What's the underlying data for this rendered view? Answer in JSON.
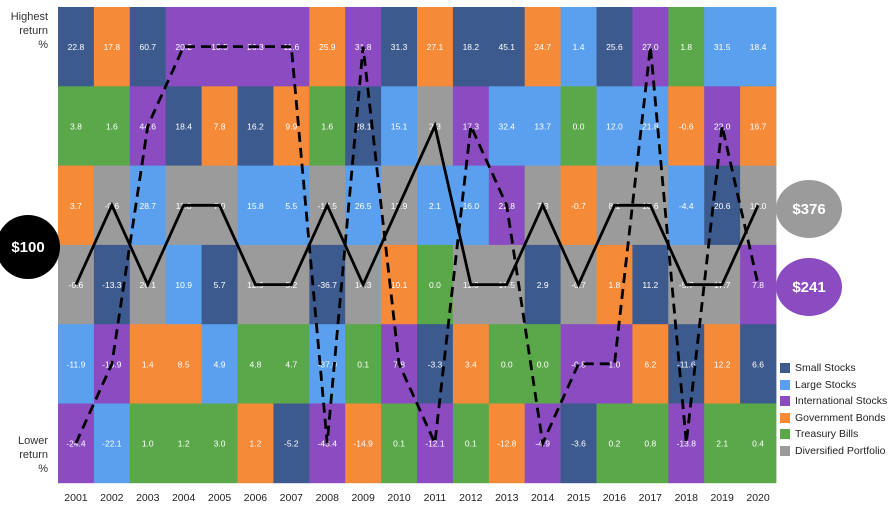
{
  "chart_data": {
    "type": "heatmap",
    "title": "",
    "years": [
      "2001",
      "2002",
      "2003",
      "2004",
      "2005",
      "2006",
      "2007",
      "2008",
      "2009",
      "2010",
      "2011",
      "2012",
      "2013",
      "2014",
      "2015",
      "2016",
      "2017",
      "2018",
      "2019",
      "2020"
    ],
    "y_top_label": [
      "Highest",
      "return",
      "%"
    ],
    "y_bottom_label": [
      "Lower",
      "return",
      "%"
    ],
    "series": [
      {
        "name": "Small Stocks",
        "key": "S",
        "color": "#3d5a8e"
      },
      {
        "name": "Large Stocks",
        "key": "L",
        "color": "#5aa0ee"
      },
      {
        "name": "International Stocks",
        "key": "I",
        "color": "#8a4cc0"
      },
      {
        "name": "Government Bonds",
        "key": "G",
        "color": "#f58a38"
      },
      {
        "name": "Treasury Bills",
        "key": "T",
        "color": "#5ba84a"
      },
      {
        "name": "Diversified Portfolio",
        "key": "D",
        "color": "#9b9b9b"
      }
    ],
    "columns": [
      {
        "year": "2001",
        "cells": [
          [
            "S",
            "22.8"
          ],
          [
            "T",
            "3.8"
          ],
          [
            "G",
            "3.7"
          ],
          [
            "D",
            "-0.6"
          ],
          [
            "L",
            "-11.9"
          ],
          [
            "I",
            "-24.4"
          ]
        ]
      },
      {
        "year": "2002",
        "cells": [
          [
            "G",
            "17.8"
          ],
          [
            "T",
            "1.6"
          ],
          [
            "D",
            "-0.6"
          ],
          [
            "S",
            "-13.3"
          ],
          [
            "I",
            "-15.9"
          ],
          [
            "L",
            "-22.1"
          ]
        ]
      },
      {
        "year": "2003",
        "cells": [
          [
            "S",
            "60.7"
          ],
          [
            "I",
            "44.6"
          ],
          [
            "L",
            "28.7"
          ],
          [
            "D",
            "26.1"
          ],
          [
            "G",
            "1.4"
          ],
          [
            "T",
            "1.0"
          ]
        ]
      },
      {
        "year": "2004",
        "cells": [
          [
            "I",
            "20.2"
          ],
          [
            "S",
            "18.4"
          ],
          [
            "D",
            "11.8"
          ],
          [
            "L",
            "10.9"
          ],
          [
            "G",
            "8.5"
          ],
          [
            "T",
            "1.2"
          ]
        ]
      },
      {
        "year": "2005",
        "cells": [
          [
            "I",
            "13.5"
          ],
          [
            "G",
            "7.8"
          ],
          [
            "D",
            "7.0"
          ],
          [
            "S",
            "5.7"
          ],
          [
            "L",
            "4.9"
          ],
          [
            "T",
            "3.0"
          ]
        ]
      },
      {
        "year": "2006",
        "cells": [
          [
            "I",
            "26.3"
          ],
          [
            "S",
            "16.2"
          ],
          [
            "L",
            "15.8"
          ],
          [
            "D",
            "12.9"
          ],
          [
            "T",
            "4.8"
          ],
          [
            "G",
            "1.2"
          ]
        ]
      },
      {
        "year": "2007",
        "cells": [
          [
            "I",
            "11.6"
          ],
          [
            "G",
            "9.9"
          ],
          [
            "L",
            "5.5"
          ],
          [
            "D",
            "5.2"
          ],
          [
            "T",
            "4.7"
          ],
          [
            "S",
            "-5.2"
          ]
        ]
      },
      {
        "year": "2008",
        "cells": [
          [
            "G",
            "25.9"
          ],
          [
            "T",
            "1.6"
          ],
          [
            "D",
            "-17.5"
          ],
          [
            "S",
            "-36.7"
          ],
          [
            "L",
            "-37.0"
          ],
          [
            "I",
            "-43.4"
          ]
        ]
      },
      {
        "year": "2009",
        "cells": [
          [
            "I",
            "31.8"
          ],
          [
            "S",
            "28.1"
          ],
          [
            "L",
            "26.5"
          ],
          [
            "D",
            "14.3"
          ],
          [
            "T",
            "0.1"
          ],
          [
            "G",
            "-14.9"
          ]
        ]
      },
      {
        "year": "2010",
        "cells": [
          [
            "S",
            "31.3"
          ],
          [
            "L",
            "15.1"
          ],
          [
            "D",
            "12.9"
          ],
          [
            "G",
            "10.1"
          ],
          [
            "I",
            "7.8"
          ],
          [
            "T",
            "0.1"
          ]
        ]
      },
      {
        "year": "2011",
        "cells": [
          [
            "G",
            "27.1"
          ],
          [
            "D",
            "2.3"
          ],
          [
            "L",
            "2.1"
          ],
          [
            "T",
            "0.0"
          ],
          [
            "S",
            "-3.3"
          ],
          [
            "I",
            "-12.1"
          ]
        ]
      },
      {
        "year": "2012",
        "cells": [
          [
            "S",
            "18.2"
          ],
          [
            "I",
            "17.3"
          ],
          [
            "L",
            "16.0"
          ],
          [
            "D",
            "11.0"
          ],
          [
            "G",
            "3.4"
          ],
          [
            "T",
            "0.1"
          ]
        ]
      },
      {
        "year": "2013",
        "cells": [
          [
            "S",
            "45.1"
          ],
          [
            "L",
            "32.4"
          ],
          [
            "I",
            "22.8"
          ],
          [
            "D",
            "17.5"
          ],
          [
            "T",
            "0.0"
          ],
          [
            "G",
            "-12.8"
          ]
        ]
      },
      {
        "year": "2014",
        "cells": [
          [
            "G",
            "24.7"
          ],
          [
            "L",
            "13.7"
          ],
          [
            "D",
            "7.3"
          ],
          [
            "S",
            "2.9"
          ],
          [
            "T",
            "0.0"
          ],
          [
            "I",
            "-4.9"
          ]
        ]
      },
      {
        "year": "2015",
        "cells": [
          [
            "L",
            "1.4"
          ],
          [
            "T",
            "0.0"
          ],
          [
            "G",
            "-0.7"
          ],
          [
            "D",
            "-0.7"
          ],
          [
            "I",
            "-0.8"
          ],
          [
            "S",
            "-3.6"
          ]
        ]
      },
      {
        "year": "2016",
        "cells": [
          [
            "S",
            "25.6"
          ],
          [
            "L",
            "12.0"
          ],
          [
            "D",
            "8.1"
          ],
          [
            "G",
            "1.8"
          ],
          [
            "I",
            "1.0"
          ],
          [
            "T",
            "0.2"
          ]
        ]
      },
      {
        "year": "2017",
        "cells": [
          [
            "I",
            "27.0"
          ],
          [
            "L",
            "21.8"
          ],
          [
            "D",
            "13.6"
          ],
          [
            "S",
            "11.2"
          ],
          [
            "G",
            "6.2"
          ],
          [
            "T",
            "0.8"
          ]
        ]
      },
      {
        "year": "2018",
        "cells": [
          [
            "T",
            "1.8"
          ],
          [
            "G",
            "-0.6"
          ],
          [
            "L",
            "-4.4"
          ],
          [
            "D",
            "-5.7"
          ],
          [
            "S",
            "-11.6"
          ],
          [
            "I",
            "-13.8"
          ]
        ]
      },
      {
        "year": "2019",
        "cells": [
          [
            "L",
            "31.5"
          ],
          [
            "I",
            "22.0"
          ],
          [
            "S",
            "20.6"
          ],
          [
            "D",
            "17.7"
          ],
          [
            "G",
            "12.2"
          ],
          [
            "T",
            "2.1"
          ]
        ]
      },
      {
        "year": "2020",
        "cells": [
          [
            "L",
            "18.4"
          ],
          [
            "G",
            "16.7"
          ],
          [
            "D",
            "10.0"
          ],
          [
            "I",
            "7.8"
          ],
          [
            "S",
            "6.6"
          ],
          [
            "T",
            "0.4"
          ]
        ]
      }
    ],
    "rank_paths": {
      "Diversified Portfolio": [
        4,
        3,
        4,
        3,
        3,
        4,
        4,
        3,
        4,
        3,
        2,
        4,
        4,
        3,
        4,
        3,
        3,
        4,
        4,
        3
      ],
      "International Stocks": [
        6,
        5,
        2,
        1,
        1,
        1,
        1,
        6,
        1,
        5,
        6,
        2,
        3,
        6,
        5,
        5,
        1,
        6,
        2,
        4
      ]
    },
    "line_styles": {
      "Diversified Portfolio": "solid",
      "International Stocks": "dashed"
    },
    "end_values": {
      "start": "$100",
      "Diversified Portfolio": "$376",
      "International Stocks": "$241"
    },
    "grid": false,
    "legend_position": "bottom-right"
  }
}
